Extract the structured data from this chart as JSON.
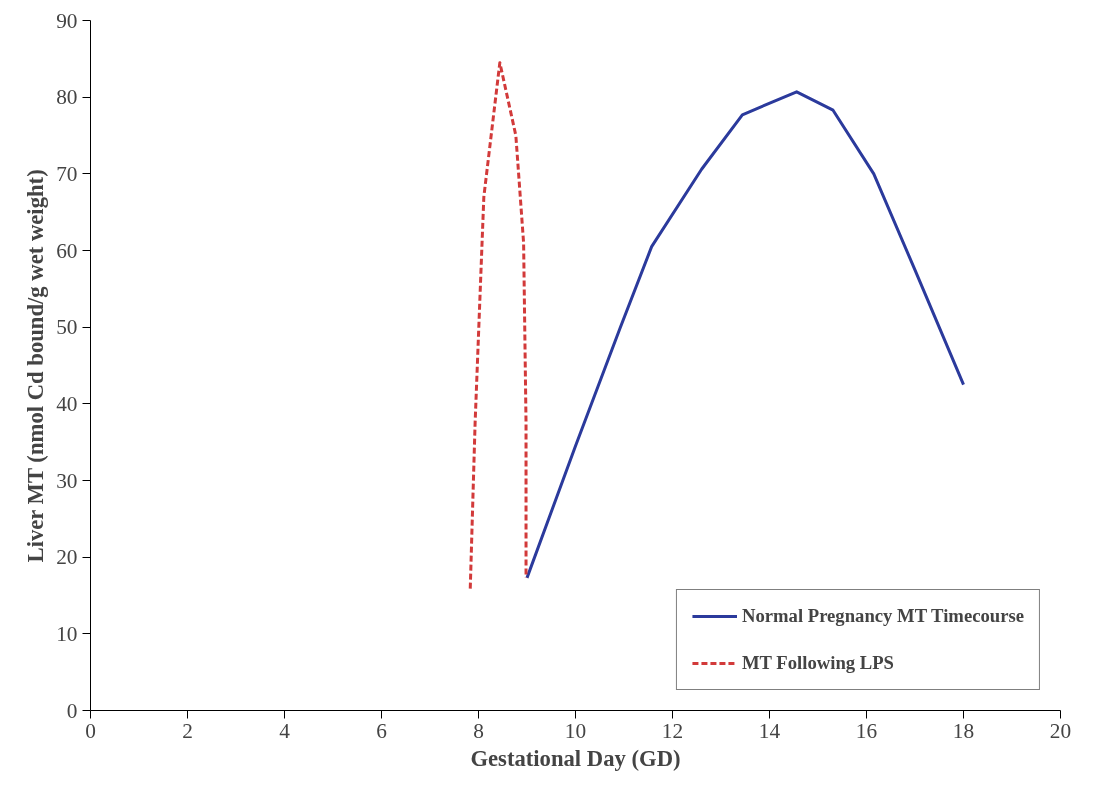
{
  "chart_data": {
    "type": "line",
    "xlabel": "Gestational Day (GD)",
    "ylabel": "Liver MT (nmol Cd bound/g wet weight)",
    "xlim": [
      0,
      20
    ],
    "xticks": [
      0,
      2,
      4,
      6,
      8,
      10,
      12,
      14,
      16,
      18,
      20
    ],
    "ylim": [
      0,
      90
    ],
    "yticks": [
      0,
      10,
      20,
      30,
      40,
      50,
      60,
      70,
      80,
      90
    ],
    "grid": false,
    "legend": "bottom right",
    "marker": "none",
    "series": [
      {
        "name": "Normal Pregnancy MT Timecourse",
        "color": "#2b3a9c",
        "line_style": "solid",
        "x": [
          9.0,
          10.0,
          10.92,
          11.57,
          12.6,
          13.44,
          14.56,
          15.31,
          16.15,
          16.99,
          18.0
        ],
        "values": [
          17.3,
          34.5,
          49.9,
          60.5,
          70.6,
          77.7,
          80.7,
          78.3,
          70,
          57.6,
          42.5
        ]
      },
      {
        "name": "MT Following LPS",
        "color": "#d23a3a",
        "line_style": "dashed",
        "x": [
          7.83,
          7.93,
          8.11,
          8.44,
          8.77,
          8.93,
          8.98,
          8.98
        ],
        "values": [
          15.9,
          37.5,
          67,
          84.5,
          75,
          61,
          37.5,
          17.3
        ]
      }
    ]
  }
}
